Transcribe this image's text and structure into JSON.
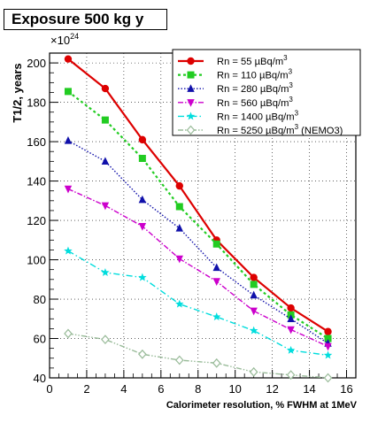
{
  "chart_data": {
    "type": "line",
    "title": "Exposure 500 kg y",
    "xlabel": "Calorimeter resolution, % FWHM at 1MeV",
    "ylabel": "T1/2, years",
    "yexponent_label": "×10",
    "yexponent": "24",
    "xlim": [
      0,
      16.5
    ],
    "ylim": [
      40,
      205
    ],
    "xticks": [
      0,
      2,
      4,
      6,
      8,
      10,
      12,
      14,
      16
    ],
    "yticks": [
      40,
      60,
      80,
      100,
      120,
      140,
      160,
      180,
      200
    ],
    "grid": true,
    "legend_position": "top-right",
    "x": [
      1,
      3,
      5,
      7,
      9,
      11,
      13,
      15
    ],
    "series": [
      {
        "name": "Rn = 55 µBq/m³",
        "label_prefix": "Rn = 55 µBq/m",
        "label_suffix": "",
        "color": "#dd0000",
        "marker": "circle",
        "dash": "",
        "width": 2.2,
        "values": [
          202,
          187,
          161,
          137.5,
          110,
          91,
          75.5,
          63.5
        ]
      },
      {
        "name": "Rn = 110 µBq/m³",
        "label_prefix": "Rn = 110 µBq/m",
        "label_suffix": "",
        "color": "#22cc22",
        "marker": "square",
        "dash": "3,3",
        "width": 2.2,
        "values": [
          185.5,
          171,
          151.5,
          127,
          108,
          87.5,
          72,
          60
        ]
      },
      {
        "name": "Rn = 280 µBq/m³",
        "label_prefix": "Rn = 280 µBq/m",
        "label_suffix": "",
        "color": "#1010aa",
        "marker": "triangle-up",
        "dash": "1.5,2",
        "width": 1.4,
        "values": [
          160.5,
          150,
          130.5,
          116,
          96,
          82,
          70,
          57.5
        ]
      },
      {
        "name": "Rn = 560 µBq/m³",
        "label_prefix": "Rn = 560 µBq/m",
        "label_suffix": "",
        "color": "#cc00cc",
        "marker": "triangle-down",
        "dash": "6,2,1.5,2",
        "width": 1.4,
        "values": [
          136,
          127.5,
          117,
          100.5,
          89,
          74,
          64.5,
          56
        ]
      },
      {
        "name": "Rn = 1400 µBq/m³",
        "label_prefix": "Rn = 1400 µBq/m",
        "label_suffix": "",
        "color": "#00dddd",
        "marker": "star",
        "dash": "7,3,1.5,3",
        "width": 1.4,
        "values": [
          104.5,
          93.5,
          91,
          77.5,
          71,
          64,
          54,
          51.5
        ]
      },
      {
        "name": "Rn = 5250 µBq/m³ (NEMO3)",
        "label_prefix": "Rn = 5250 µBq/m",
        "label_suffix": " (NEMO3)",
        "color": "#99bb99",
        "marker": "diamond",
        "dash": "6,2,1.5,2,1.5,2",
        "width": 1.4,
        "values": [
          62.5,
          59.5,
          52,
          49,
          47.5,
          43,
          41.5,
          40
        ]
      }
    ]
  }
}
